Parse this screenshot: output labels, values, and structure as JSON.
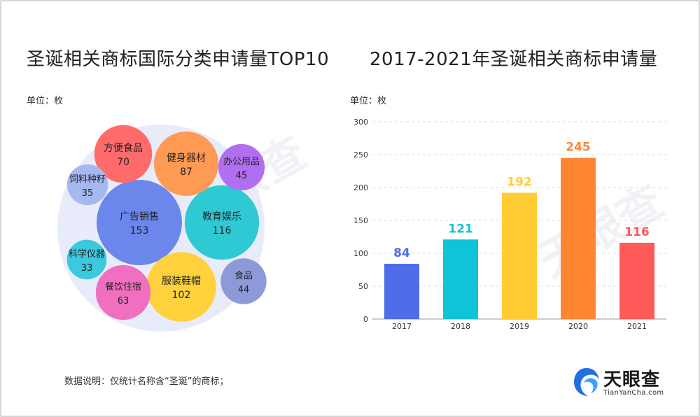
{
  "left": {
    "title": "圣诞相关商标国际分类申请量TOP10",
    "unit": "单位：枚",
    "note": "数据说明：仅统计名称含“圣诞”的商标；"
  },
  "right": {
    "title": "2017-2021年圣诞相关商标申请量",
    "unit": "单位：枚"
  },
  "logo": {
    "name": "天眼查",
    "url": "TianYanCha.com"
  },
  "colors": {
    "bubble_bg": "#e8ecfa",
    "bar_2017": "#4f6de8",
    "bar_2018": "#11c3d6",
    "bar_2019": "#ffcc33",
    "bar_2020": "#ff8533",
    "bar_2021": "#ff5a5a",
    "logo_blue": "#1f6fe5"
  },
  "chart_data": [
    {
      "type": "bubble",
      "title": "圣诞相关商标国际分类申请量TOP10",
      "unit": "单位：枚",
      "categories": [
        "广告销售",
        "教育娱乐",
        "服装鞋帽",
        "健身器材",
        "方便食品",
        "餐饮住宿",
        "办公用品",
        "食品",
        "饲料种籽",
        "科学仪器"
      ],
      "values": [
        153,
        116,
        102,
        87,
        70,
        63,
        45,
        44,
        35,
        33
      ],
      "colors": [
        "#6b87ec",
        "#2fc9d3",
        "#ffd13d",
        "#ff9a55",
        "#ff6b6b",
        "#f06fc0",
        "#b06ef0",
        "#8e9ad8",
        "#a5b8f0",
        "#3cc8dd"
      ]
    },
    {
      "type": "bar",
      "title": "2017-2021年圣诞相关商标申请量",
      "unit": "单位：枚",
      "categories": [
        "2017",
        "2018",
        "2019",
        "2020",
        "2021"
      ],
      "values": [
        84,
        121,
        192,
        245,
        116
      ],
      "ylim": [
        0,
        300
      ],
      "yticks": [
        0,
        50,
        100,
        150,
        200,
        250,
        300
      ],
      "grid": true,
      "colors": [
        "#4f6de8",
        "#11c3d6",
        "#ffcc33",
        "#ff8533",
        "#ff5a5a"
      ]
    }
  ]
}
